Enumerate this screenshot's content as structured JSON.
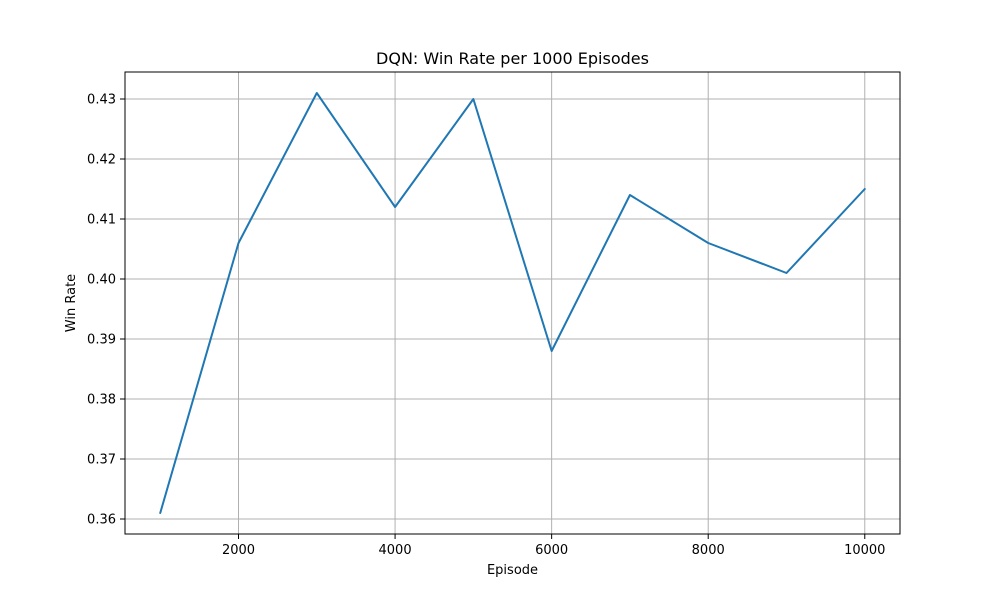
{
  "chart_data": {
    "type": "line",
    "title": "DQN: Win Rate per 1000 Episodes",
    "xlabel": "Episode",
    "ylabel": "Win Rate",
    "xlim": [
      550,
      10450
    ],
    "ylim": [
      0.3575,
      0.4345
    ],
    "xticks": [
      2000,
      4000,
      6000,
      8000,
      10000
    ],
    "xtick_labels": [
      "2000",
      "4000",
      "6000",
      "8000",
      "10000"
    ],
    "yticks": [
      0.36,
      0.37,
      0.38,
      0.39,
      0.4,
      0.41,
      0.42,
      0.43
    ],
    "ytick_labels": [
      "0.36",
      "0.37",
      "0.38",
      "0.39",
      "0.40",
      "0.41",
      "0.42",
      "0.43"
    ],
    "grid": true,
    "series": [
      {
        "color": "#1f77b4",
        "x": [
          1000,
          2000,
          3000,
          4000,
          5000,
          6000,
          7000,
          8000,
          9000,
          10000
        ],
        "y": [
          0.361,
          0.406,
          0.431,
          0.412,
          0.43,
          0.388,
          0.414,
          0.406,
          0.401,
          0.415
        ]
      }
    ]
  }
}
